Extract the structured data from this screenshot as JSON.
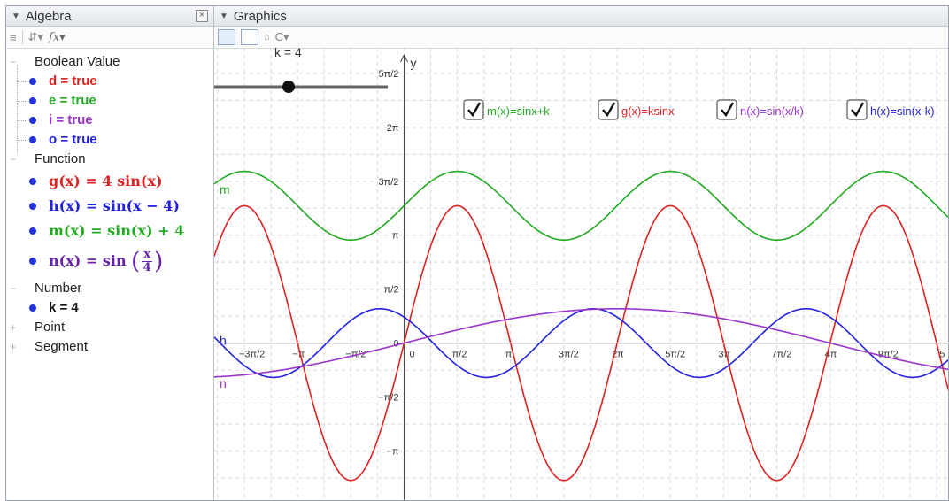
{
  "algebra": {
    "title": "Algebra",
    "close": "☒",
    "toolbar": {
      "sort_icon": "≡",
      "order_icon": "⇵▾",
      "fx": "fx▾"
    },
    "groups": {
      "boolean": "Boolean Value",
      "function": "Function",
      "number": "Number",
      "point": "Point",
      "segment": "Segment"
    },
    "booleans": [
      "d = true",
      "e = true",
      "i = true",
      "o = true"
    ],
    "functions": {
      "g": "g(x) = 4 sin(x)",
      "h": "h(x) = sin(x − 4)",
      "m": "m(x) = sin(x) + 4",
      "n_prefix": "n(x) = sin",
      "n_num": "x",
      "n_den": "4"
    },
    "numbers": [
      "k = 4"
    ]
  },
  "graphics": {
    "title": "Graphics",
    "home_icon": "🏠",
    "mode_icon": "C▾",
    "slider_label": "k = 4",
    "y_axis_label": "y",
    "checkboxes": [
      {
        "label": "m(x)=sinx+k",
        "color": "#22aa22"
      },
      {
        "label": "g(x)=ksinx",
        "color": "#dd2222"
      },
      {
        "label": "n(x)=sin(x/k)",
        "color": "#9933cc"
      },
      {
        "label": "h(x)=sin(x-k)",
        "color": "#2222dd"
      }
    ],
    "x_ticks": [
      "−3π/2",
      "−π",
      "−π/2",
      "0",
      "π/2",
      "π",
      "3π/2",
      "2π",
      "5π/2",
      "3π",
      "7π/2",
      "4π",
      "9π/2",
      "5"
    ],
    "y_ticks": [
      "5π/2",
      "2π",
      "3π/2",
      "π",
      "π/2",
      "0",
      "−π/2",
      "−π"
    ],
    "curve_labels": {
      "m": "m",
      "h": "h",
      "n": "n"
    }
  },
  "colors": {
    "g": "#dd2222",
    "h": "#2222dd",
    "m": "#22aa22",
    "n": "#9933cc",
    "bool_d": "#dd2222",
    "bool_e": "#22aa22",
    "bool_i": "#9933cc",
    "bool_o": "#2222dd",
    "k": "#111111"
  },
  "chart_data": {
    "type": "line",
    "series": [
      {
        "name": "m",
        "formula": "sin(x)+4"
      },
      {
        "name": "g",
        "formula": "4 sin(x)"
      },
      {
        "name": "h",
        "formula": "sin(x-4)"
      },
      {
        "name": "n",
        "formula": "sin(x/4)"
      }
    ],
    "xlim": [
      -5.6,
      16.1
    ],
    "ylim": [
      -4.6,
      8.6
    ],
    "grid": true
  }
}
